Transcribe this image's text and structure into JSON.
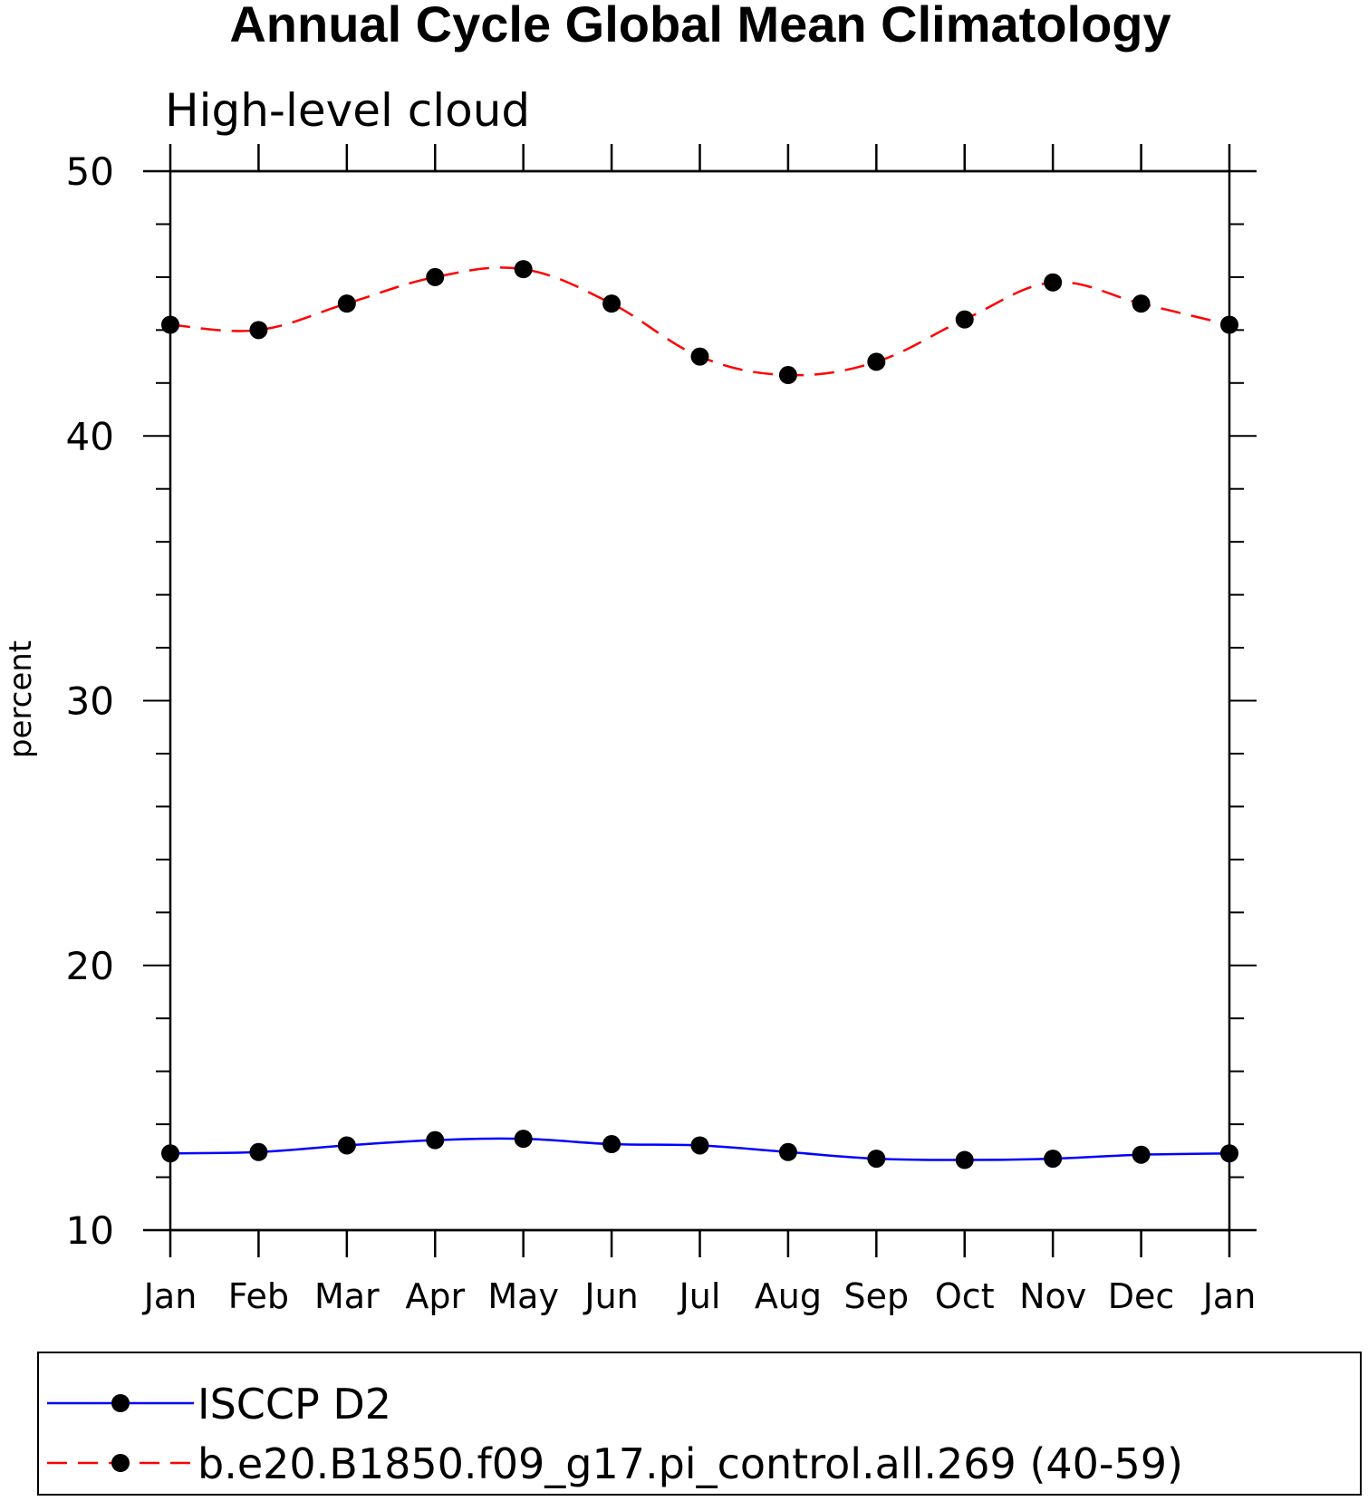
{
  "chart_data": {
    "type": "line",
    "title": "Annual Cycle Global Mean Climatology",
    "subtitle": "High-level cloud",
    "xlabel": "",
    "ylabel": "percent",
    "categories": [
      "Jan",
      "Feb",
      "Mar",
      "Apr",
      "May",
      "Jun",
      "Jul",
      "Aug",
      "Sep",
      "Oct",
      "Nov",
      "Dec",
      "Jan"
    ],
    "ylim": [
      10,
      50
    ],
    "yticks": [
      "10",
      "20",
      "30",
      "40",
      "50"
    ],
    "grid": false,
    "legend_position": "bottom",
    "series": [
      {
        "name": "ISCCP D2",
        "color": "#0000ff",
        "line_style": "solid",
        "marker": "filled-circle",
        "values": [
          12.9,
          12.95,
          13.2,
          13.4,
          13.45,
          13.25,
          13.2,
          12.95,
          12.7,
          12.65,
          12.7,
          12.85,
          12.9
        ]
      },
      {
        "name": "b.e20.B1850.f09_g17.pi_control.all.269 (40-59)",
        "color": "#ff0000",
        "line_style": "dashed",
        "marker": "filled-circle",
        "values": [
          44.2,
          44.0,
          45.0,
          46.0,
          46.3,
          45.0,
          43.0,
          42.3,
          42.8,
          44.4,
          45.8,
          45.0,
          44.2
        ]
      }
    ]
  }
}
